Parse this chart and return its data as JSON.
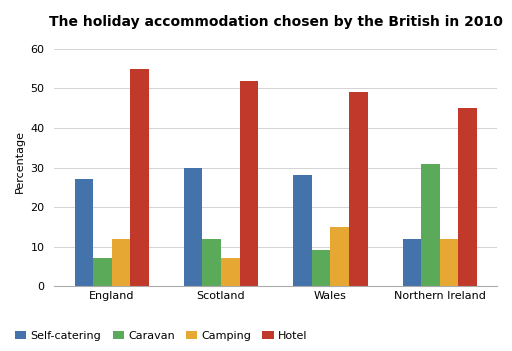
{
  "title": "The holiday accommodation chosen by the British in 2010",
  "categories": [
    "England",
    "Scotland",
    "Wales",
    "Northern Ireland"
  ],
  "series": {
    "Self-catering": [
      27,
      30,
      28,
      12
    ],
    "Caravan": [
      7,
      12,
      9,
      31
    ],
    "Camping": [
      12,
      7,
      15,
      12
    ],
    "Hotel": [
      55,
      52,
      49,
      45
    ]
  },
  "colors": {
    "Self-catering": "#4472aa",
    "Caravan": "#5aaa5a",
    "Camping": "#e6a832",
    "Hotel": "#c0392b"
  },
  "ylabel": "Percentage",
  "ylim": [
    0,
    63
  ],
  "yticks": [
    0,
    10,
    20,
    30,
    40,
    50,
    60
  ],
  "background_color": "#ffffff",
  "title_fontsize": 10,
  "legend_fontsize": 8,
  "axis_fontsize": 8,
  "bar_width": 0.17,
  "group_width": 0.85
}
